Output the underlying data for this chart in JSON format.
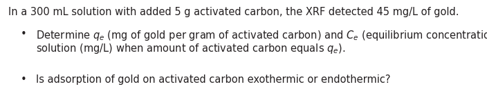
{
  "background_color": "#ffffff",
  "text_color": "#231f20",
  "font_family": "DejaVu Sans",
  "font_size": 10.5,
  "fig_width": 7.04,
  "fig_height": 1.45,
  "dpi": 100,
  "title": "In a 300 mL solution with added 5 g activated carbon, the XRF detected 45 mg/L of gold.",
  "bullet2": "Is adsorption of gold on activated carbon exothermic or endothermic?",
  "line1_pre": "Determine ",
  "line1_qe": "$\\boldsymbol{q_e}$",
  "line1_mid": " (mg of gold per gram of activated carbon) and ",
  "line1_Ce": "$\\boldsymbol{C_e}$",
  "line1_post": " (equilibrium concentration in",
  "line2_pre": "solution (mg/L) when amount of activated carbon equals ",
  "line2_qe": "$\\boldsymbol{q_e}$",
  "line2_post": ")."
}
